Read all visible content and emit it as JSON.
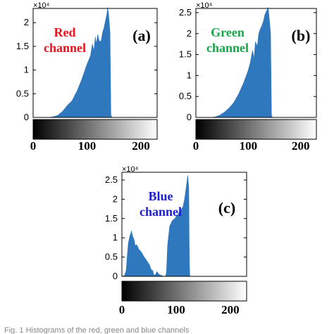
{
  "figure": {
    "caption": "Fig. 1 Histograms of the red, green and blue channels"
  },
  "colors": {
    "fill": "#2f78bd",
    "red_label": "#e8141d",
    "green_label": "#1aa64a",
    "blue_label": "#1c1fd0",
    "frame": "#000000"
  },
  "chart_data": [
    {
      "type": "area",
      "panel_label": "(a)",
      "channel_label": [
        "Red",
        "channel"
      ],
      "multiplier_text": "×10⁴",
      "ylim": [
        0,
        2.3
      ],
      "yticks": [
        0,
        0.5,
        1,
        1.5,
        2
      ],
      "ytick_labels": [
        "0",
        "0.5",
        "1",
        "1.5",
        "2"
      ],
      "xlim": [
        0,
        255
      ],
      "colorbar_ticks": [
        0,
        100,
        200
      ],
      "colorbar_tick_labels": [
        "0",
        "100",
        "200"
      ],
      "x": [
        0,
        30,
        40,
        50,
        60,
        70,
        80,
        90,
        100,
        110,
        118,
        122,
        125,
        128,
        130,
        133,
        136,
        140,
        143,
        146,
        148,
        150,
        152,
        153,
        155,
        158,
        160,
        162
      ],
      "y": [
        0,
        0,
        0.01,
        0.04,
        0.12,
        0.25,
        0.35,
        0.55,
        0.8,
        1.1,
        1.3,
        1.55,
        1.4,
        1.7,
        1.55,
        1.75,
        1.6,
        1.62,
        1.8,
        1.9,
        2.0,
        2.1,
        2.2,
        2.32,
        2.2,
        1.8,
        0.05,
        0
      ]
    },
    {
      "type": "area",
      "panel_label": "(b)",
      "channel_label": [
        "Green",
        "channel"
      ],
      "multiplier_text": "×10⁴",
      "ylim": [
        0,
        2.6
      ],
      "yticks": [
        0,
        0.5,
        1,
        1.5,
        2,
        2.5
      ],
      "ytick_labels": [
        "0",
        "0.5",
        "1",
        "1.5",
        "2",
        "2.5"
      ],
      "xlim": [
        0,
        255
      ],
      "colorbar_ticks": [
        0,
        100,
        200
      ],
      "colorbar_tick_labels": [
        "0",
        "100",
        "200"
      ],
      "x": [
        0,
        30,
        40,
        50,
        60,
        70,
        80,
        90,
        100,
        110,
        115,
        120,
        123,
        126,
        130,
        133,
        136,
        140,
        143,
        146,
        150,
        153,
        155,
        158,
        160,
        162
      ],
      "y": [
        0,
        0,
        0.01,
        0.05,
        0.12,
        0.22,
        0.35,
        0.55,
        0.8,
        1.1,
        1.3,
        1.6,
        1.4,
        1.8,
        1.7,
        2.0,
        2.1,
        2.2,
        2.3,
        2.45,
        2.55,
        2.62,
        2.4,
        2.0,
        0.05,
        0
      ]
    },
    {
      "type": "area",
      "panel_label": "(c)",
      "channel_label": [
        "Blue",
        "channel"
      ],
      "multiplier_text": "×10⁴",
      "ylim": [
        0,
        2.7
      ],
      "yticks": [
        0,
        0.5,
        1,
        1.5,
        2,
        2.5
      ],
      "ytick_labels": [
        "0",
        "0.5",
        "1",
        "1.5",
        "2",
        "2.5"
      ],
      "xlim": [
        0,
        235
      ],
      "colorbar_ticks": [
        0,
        100,
        200
      ],
      "colorbar_tick_labels": [
        "0",
        "100",
        "200"
      ],
      "x": [
        0,
        5,
        8,
        10,
        12,
        15,
        17,
        18,
        20,
        23,
        25,
        28,
        32,
        37,
        42,
        47,
        52,
        55,
        58,
        60,
        62,
        66,
        70,
        75,
        80,
        82,
        84,
        86,
        90,
        95,
        100,
        102,
        105,
        110,
        115,
        118,
        120,
        122,
        124,
        126,
        127,
        128
      ],
      "y": [
        0,
        0.02,
        0.15,
        0.5,
        0.85,
        1.05,
        1.12,
        1.18,
        1.05,
        0.95,
        0.8,
        0.82,
        0.7,
        0.62,
        0.5,
        0.4,
        0.3,
        0.18,
        0.15,
        0.05,
        0.02,
        0.12,
        0.05,
        0.02,
        0,
        0,
        0.1,
        0.8,
        1.3,
        1.45,
        1.5,
        1.55,
        1.6,
        1.7,
        1.8,
        2.0,
        2.2,
        2.4,
        2.62,
        2.3,
        0.4,
        0
      ]
    }
  ]
}
